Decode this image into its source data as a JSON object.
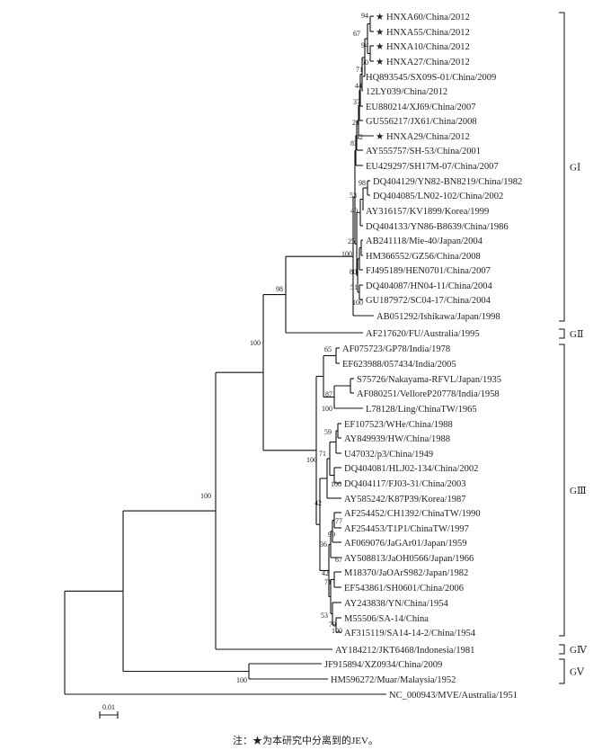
{
  "tree": {
    "scale_label": "0.01",
    "note": "注：★为本研究中分离到的JEV。",
    "leaves": [
      {
        "label": "HNXA60/China/2012",
        "star": true
      },
      {
        "label": "HNXA55/China/2012",
        "star": true
      },
      {
        "label": "HNXA10/China/2012",
        "star": true
      },
      {
        "label": "HNXA27/China/2012",
        "star": true
      },
      {
        "label": "HQ893545/SX09S-01/China/2009",
        "star": false
      },
      {
        "label": "12LY039/China/2012",
        "star": false
      },
      {
        "label": "EU880214/XJ69/China/2007",
        "star": false
      },
      {
        "label": "GU556217/JX61/China/2008",
        "star": false
      },
      {
        "label": "HNXA29/China/2012",
        "star": true
      },
      {
        "label": "AY555757/SH-53/China/2001",
        "star": false
      },
      {
        "label": "EU429297/SH17M-07/China/2007",
        "star": false
      },
      {
        "label": "DQ404129/YN82-BN8219/China/1982",
        "star": false
      },
      {
        "label": "DQ404085/LN02-102/China/2002",
        "star": false
      },
      {
        "label": "AY316157/KV1899/Korea/1999",
        "star": false
      },
      {
        "label": "DQ404133/YN86-B8639/China/1986",
        "star": false
      },
      {
        "label": "AB241118/Mie-40/Japan/2004",
        "star": false
      },
      {
        "label": "HM366552/GZ56/China/2008",
        "star": false
      },
      {
        "label": "FJ495189/HEN0701/China/2007",
        "star": false
      },
      {
        "label": "DQ404087/HN04-11/China/2004",
        "star": false
      },
      {
        "label": "GU187972/SC04-17/China/2004",
        "star": false
      },
      {
        "label": "AB051292/Ishikawa/Japan/1998",
        "star": false
      },
      {
        "label": "AF217620/FU/Australia/1995",
        "star": false
      },
      {
        "label": "AF075723/GP78/India/1978",
        "star": false
      },
      {
        "label": "EF623988/057434/India/2005",
        "star": false
      },
      {
        "label": "S75726/Nakayama-RFVL/Japan/1935",
        "star": false
      },
      {
        "label": "AF080251/VelloreP20778/India/1958",
        "star": false
      },
      {
        "label": "L78128/Ling/ChinaTW/1965",
        "star": false
      },
      {
        "label": "EF107523/WHe/China/1988",
        "star": false
      },
      {
        "label": "AY849939/HW/China/1988",
        "star": false
      },
      {
        "label": "U47032/p3/China/1949",
        "star": false
      },
      {
        "label": "DQ404081/HLJ02-134/China/2002",
        "star": false
      },
      {
        "label": "DQ404117/FJ03-31/China/2003",
        "star": false
      },
      {
        "label": "AY585242/K87P39/Korea/1987",
        "star": false
      },
      {
        "label": "AF254452/CH1392/ChinaTW/1990",
        "star": false
      },
      {
        "label": "AF254453/T1P1/ChinaTW/1997",
        "star": false
      },
      {
        "label": "AF069076/JaGAr01/Japan/1959",
        "star": false
      },
      {
        "label": "AY508813/JaOH0566/Japan/1966",
        "star": false
      },
      {
        "label": "M18370/JaOArS982/Japan/1982",
        "star": false
      },
      {
        "label": "EF543861/SH0601/China/2006",
        "star": false
      },
      {
        "label": "AY243838/YN/China/1954",
        "star": false
      },
      {
        "label": "M55506/SA-14/China",
        "star": false
      },
      {
        "label": "AF315119/SA14-14-2/China/1954",
        "star": false
      },
      {
        "label": "AY184212/JKT6468/Indonesia/1981",
        "star": false
      },
      {
        "label": "JF915894/XZ0934/China/2009",
        "star": false
      },
      {
        "label": "HM596272/Muar/Malaysia/1952",
        "star": false
      },
      {
        "label": "NC_000943/MVE/Australia/1951",
        "star": false
      }
    ],
    "bootstrap": [
      "94",
      "67",
      "94",
      "50",
      "71",
      "44",
      "37",
      "21",
      "42",
      "83",
      "98",
      "53",
      "40",
      "25",
      "80",
      "51",
      "100",
      "100",
      "98",
      "100",
      "100",
      "65",
      "87",
      "100",
      "100",
      "59",
      "71",
      "100",
      "42",
      "77",
      "99",
      "36",
      "67",
      "42",
      "71",
      "53",
      "70",
      "100",
      "100"
    ],
    "genotypes": [
      "GⅠ",
      "GⅡ",
      "GⅢ",
      "GⅣ",
      "GⅤ"
    ]
  }
}
